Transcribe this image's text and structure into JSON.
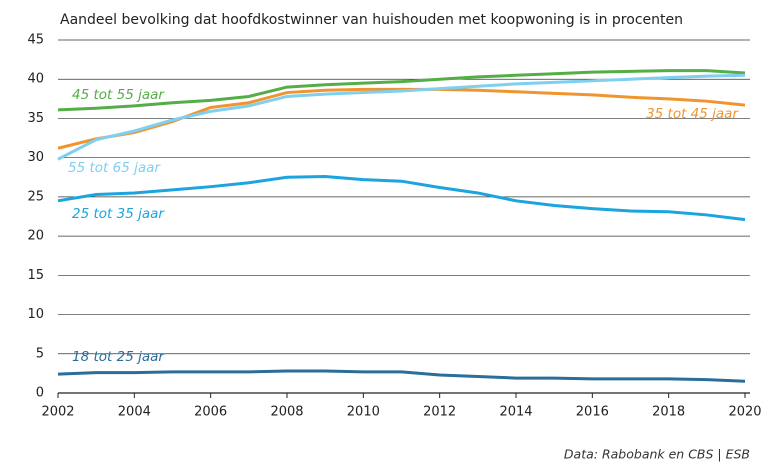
{
  "chart_data": {
    "type": "line",
    "title": "Aandeel bevolking dat hoofdkostwinner van huishouden met koopwoning is in procenten",
    "source": "Data: Rabobank en CBS | ESB",
    "x": [
      2002,
      2003,
      2004,
      2005,
      2006,
      2007,
      2008,
      2009,
      2010,
      2011,
      2012,
      2013,
      2014,
      2015,
      2016,
      2017,
      2018,
      2019,
      2020
    ],
    "xlim": [
      2002,
      2020
    ],
    "xticks": [
      2002,
      2004,
      2006,
      2008,
      2010,
      2012,
      2014,
      2016,
      2018,
      2020
    ],
    "ylim": [
      0,
      45
    ],
    "yticks": [
      0,
      5,
      10,
      15,
      20,
      25,
      30,
      35,
      40,
      45
    ],
    "grid": true,
    "series": [
      {
        "name": "45 tot 55 jaar",
        "color": "#55ad47",
        "values": [
          36.1,
          36.3,
          36.6,
          37.0,
          37.3,
          37.8,
          39.0,
          39.3,
          39.5,
          39.7,
          40.0,
          40.3,
          40.5,
          40.7,
          40.9,
          41.0,
          41.1,
          41.1,
          40.8
        ]
      },
      {
        "name": "35 tot 45 jaar",
        "color": "#f0952d",
        "values": [
          31.2,
          32.4,
          33.2,
          34.6,
          36.4,
          37.0,
          38.3,
          38.6,
          38.7,
          38.7,
          38.7,
          38.6,
          38.4,
          38.2,
          38.0,
          37.7,
          37.5,
          37.2,
          36.7
        ]
      },
      {
        "name": "55 tot 65 jaar",
        "color": "#7ecff0",
        "values": [
          29.8,
          32.3,
          33.4,
          34.8,
          35.9,
          36.6,
          37.8,
          38.1,
          38.3,
          38.5,
          38.8,
          39.1,
          39.4,
          39.6,
          39.8,
          40.0,
          40.2,
          40.4,
          40.5
        ]
      },
      {
        "name": "25 tot 35 jaar",
        "color": "#1ba4de",
        "values": [
          24.5,
          25.3,
          25.5,
          25.9,
          26.3,
          26.8,
          27.5,
          27.6,
          27.2,
          27.0,
          26.2,
          25.5,
          24.5,
          23.9,
          23.5,
          23.2,
          23.1,
          22.7,
          22.1
        ]
      },
      {
        "name": "18 tot 25 jaar",
        "color": "#2a6e99",
        "values": [
          2.4,
          2.6,
          2.6,
          2.7,
          2.7,
          2.7,
          2.8,
          2.8,
          2.7,
          2.7,
          2.3,
          2.1,
          1.9,
          1.9,
          1.8,
          1.8,
          1.8,
          1.7,
          1.5
        ]
      }
    ]
  }
}
